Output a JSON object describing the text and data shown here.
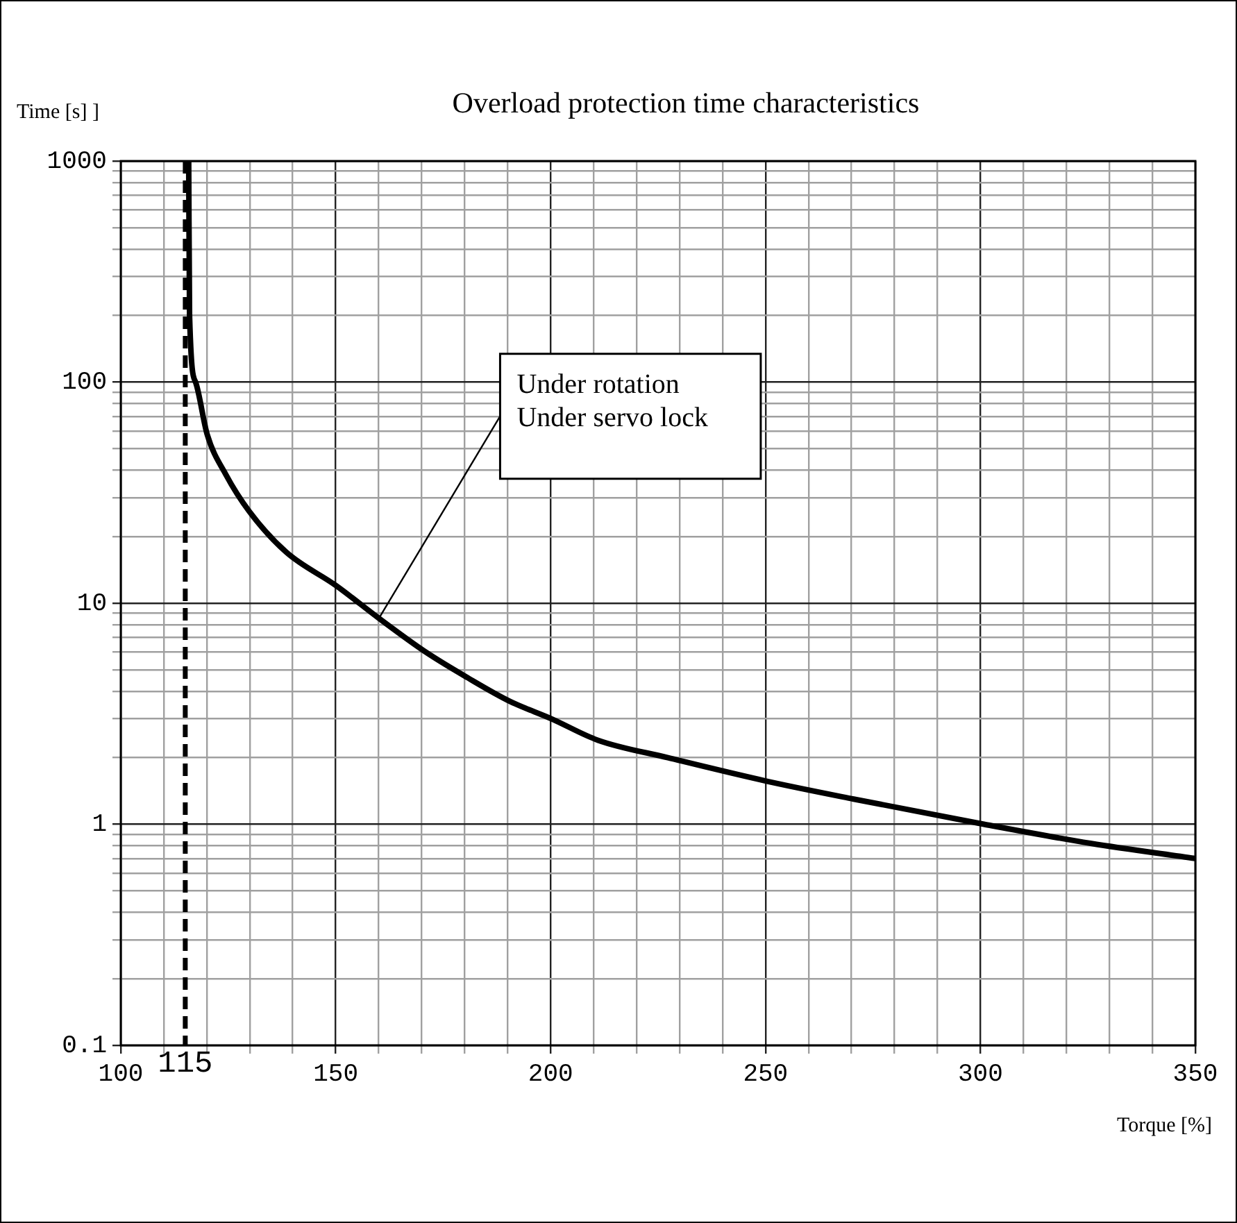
{
  "chart_data": {
    "type": "line",
    "title": "Overload protection time characteristics",
    "xlabel": "Torque [%]",
    "ylabel": "Time [s] ]",
    "xlim": [
      100,
      350
    ],
    "ylim": [
      0.1,
      1000
    ],
    "log": "y",
    "grid": true,
    "legend": false,
    "marker": "none",
    "line_style": "solid",
    "xticks": [
      100,
      {
        "value": 110,
        "label": null
      },
      {
        "value": 120,
        "label": null
      },
      {
        "value": 130,
        "label": null
      },
      {
        "value": 140,
        "label": null
      },
      150,
      {
        "value": 160,
        "label": null
      },
      {
        "value": 170,
        "label": null
      },
      {
        "value": 180,
        "label": null
      },
      {
        "value": 190,
        "label": null
      },
      200,
      {
        "value": 210,
        "label": null
      },
      {
        "value": 220,
        "label": null
      },
      {
        "value": 230,
        "label": null
      },
      {
        "value": 240,
        "label": null
      },
      250,
      {
        "value": 260,
        "label": null
      },
      {
        "value": 270,
        "label": null
      },
      {
        "value": 280,
        "label": null
      },
      {
        "value": 290,
        "label": null
      },
      300,
      {
        "value": 310,
        "label": null
      },
      {
        "value": 320,
        "label": null
      },
      {
        "value": 330,
        "label": null
      },
      {
        "value": 340,
        "label": null
      },
      350
    ],
    "yticks": [
      0.1,
      {
        "value": 0.2,
        "label": null
      },
      {
        "value": 0.3,
        "label": null
      },
      {
        "value": 0.4,
        "label": null
      },
      {
        "value": 0.5,
        "label": null
      },
      {
        "value": 0.6,
        "label": null
      },
      {
        "value": 0.7,
        "label": null
      },
      {
        "value": 0.8,
        "label": null
      },
      {
        "value": 0.9,
        "label": null
      },
      1,
      {
        "value": 2,
        "label": null
      },
      {
        "value": 3,
        "label": null
      },
      {
        "value": 4,
        "label": null
      },
      {
        "value": 5,
        "label": null
      },
      {
        "value": 6,
        "label": null
      },
      {
        "value": 7,
        "label": null
      },
      {
        "value": 8,
        "label": null
      },
      {
        "value": 9,
        "label": null
      },
      10,
      {
        "value": 20,
        "label": null
      },
      {
        "value": 30,
        "label": null
      },
      {
        "value": 40,
        "label": null
      },
      {
        "value": 50,
        "label": null
      },
      {
        "value": 60,
        "label": null
      },
      {
        "value": 70,
        "label": null
      },
      {
        "value": 80,
        "label": null
      },
      {
        "value": 90,
        "label": null
      },
      100,
      {
        "value": 200,
        "label": null
      },
      {
        "value": 300,
        "label": null
      },
      {
        "value": 400,
        "label": null
      },
      {
        "value": 500,
        "label": null
      },
      {
        "value": 600,
        "label": null
      },
      {
        "value": 700,
        "label": null
      },
      {
        "value": 800,
        "label": null
      },
      {
        "value": 900,
        "label": null
      },
      1000
    ],
    "ref_lines": [
      {
        "axis": "x",
        "value": 115,
        "label": "115",
        "color": "#000000",
        "line_style": "dashed"
      }
    ],
    "annotations": [
      {
        "text": "Under rotation\nUnder servo lock",
        "x": 160,
        "y": 8.5
      }
    ],
    "series": [
      {
        "color": "#000000",
        "x": [
          115.8,
          116,
          117.4,
          120.1,
          124.5,
          129.9,
          138.5,
          150.1,
          160.2,
          171,
          180.7,
          190.5,
          200.2,
          211,
          227.3,
          250,
          270.5,
          300.8,
          325.6,
          350
        ],
        "values": [
          1000,
          200,
          100,
          58,
          38,
          26,
          17,
          12,
          8.5,
          6,
          4.6,
          3.6,
          3,
          2.4,
          2,
          1.57,
          1.3,
          1,
          0.82,
          0.7
        ]
      }
    ]
  }
}
